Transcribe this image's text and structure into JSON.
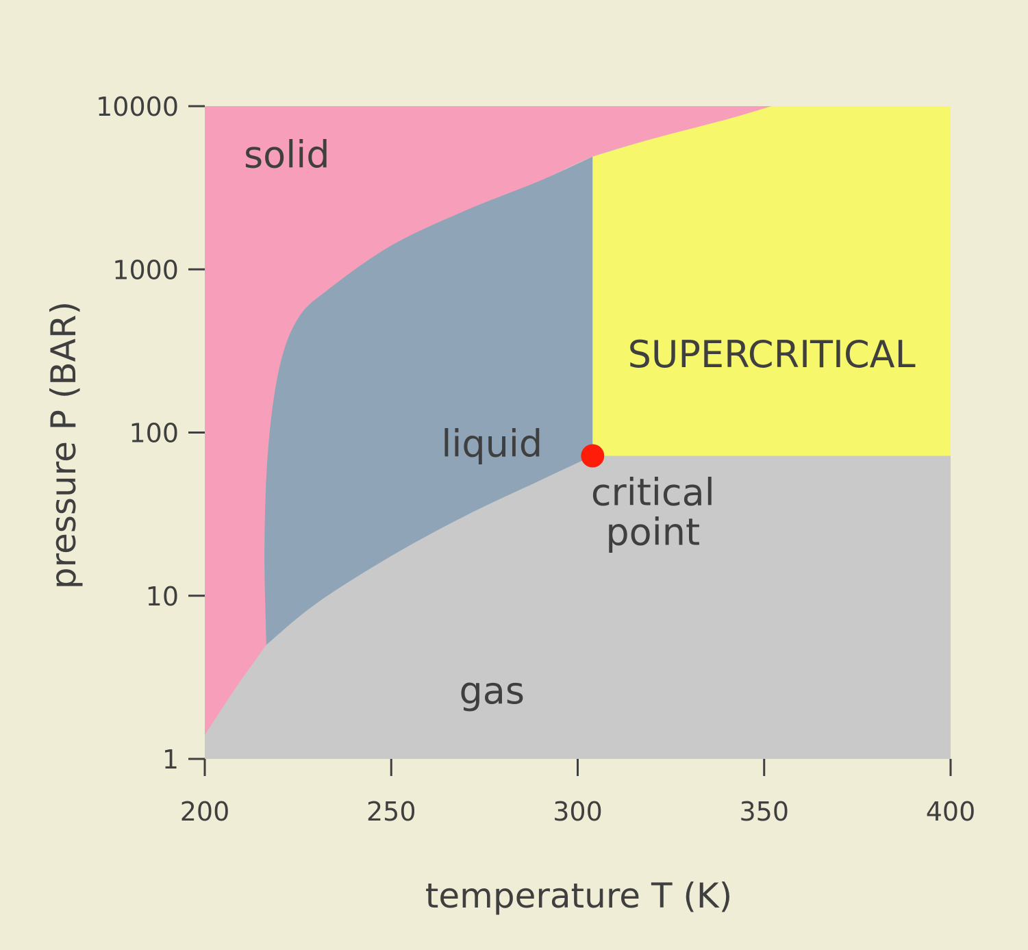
{
  "chart_data": {
    "type": "area",
    "xlabel": "temperature T (K)",
    "ylabel": "pressure P (BAR)",
    "xlim": [
      200,
      400
    ],
    "ylim": [
      1,
      10000
    ],
    "yscale": "log",
    "x_ticks": [
      200,
      250,
      300,
      350,
      400
    ],
    "y_ticks": [
      {
        "value": 1,
        "label": "1"
      },
      {
        "value": 10,
        "label": "10"
      },
      {
        "value": 100,
        "label": "100"
      },
      {
        "value": 1000,
        "label": "1000"
      },
      {
        "value": 10000,
        "label": "10000"
      }
    ],
    "colors": {
      "background": "#f0edd7",
      "solid": "#f79eba",
      "liquid": "#8fa4b6",
      "gas": "#c9c9c9",
      "supercritical": "#f7f76c",
      "critical_point": "#ff1d0a",
      "text": "#3f3f3f"
    },
    "boundaries": {
      "sublimation_curve": [
        [
          200,
          1.4
        ],
        [
          205,
          2.1
        ],
        [
          210,
          3.1
        ],
        [
          216.5,
          5.0
        ]
      ],
      "vaporization_curve": [
        [
          216.5,
          5.0
        ],
        [
          230,
          9.0
        ],
        [
          250,
          17.5
        ],
        [
          270,
          31
        ],
        [
          290,
          51
        ],
        [
          304,
          72
        ]
      ],
      "melting_curve": [
        [
          216.5,
          5.0
        ],
        [
          216,
          20
        ],
        [
          217,
          80
        ],
        [
          220,
          250
        ],
        [
          225,
          500
        ],
        [
          233,
          750
        ],
        [
          250,
          1400
        ],
        [
          270,
          2300
        ],
        [
          290,
          3500
        ],
        [
          304,
          4900
        ],
        [
          320,
          6300
        ],
        [
          340,
          8300
        ],
        [
          352,
          10000
        ]
      ],
      "supercritical_region": {
        "t_min": 304,
        "p_min": 72
      }
    },
    "critical_point": {
      "label_line1": "critical",
      "label_line2": "point",
      "T": 304,
      "P": 72
    },
    "regions": [
      {
        "label": "solid",
        "T": 222,
        "P": 5000
      },
      {
        "label": "liquid",
        "T": 277,
        "P": 85
      },
      {
        "label": "gas",
        "T": 277,
        "P": 2.6
      },
      {
        "label": "SUPERCRITICAL",
        "T": 352,
        "P": 300
      }
    ]
  }
}
